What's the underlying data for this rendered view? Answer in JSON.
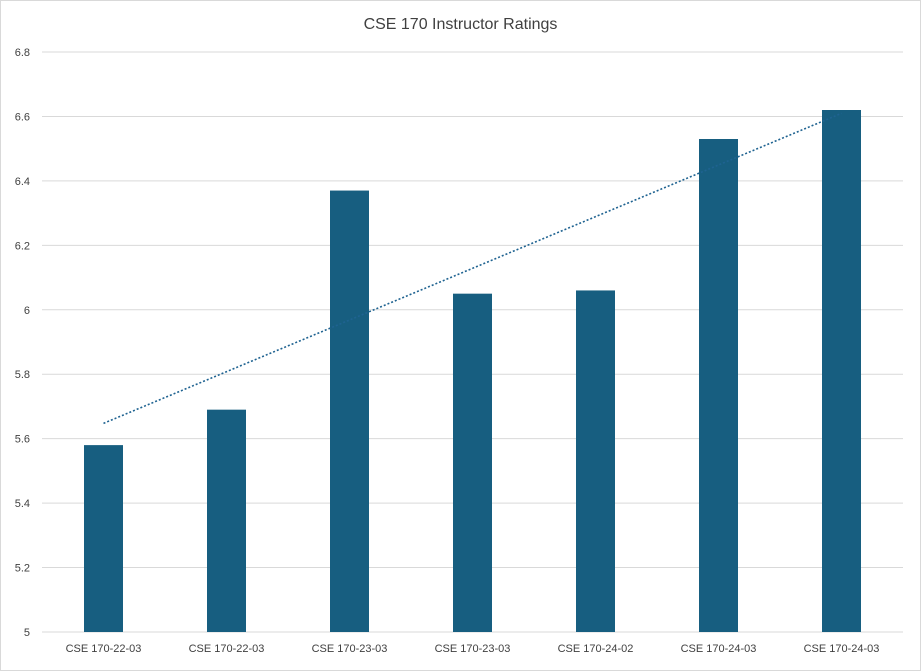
{
  "chart_data": {
    "type": "bar",
    "title": "CSE 170 Instructor Ratings",
    "xlabel": "",
    "ylabel": "",
    "categories": [
      "CSE 170-22-03",
      "CSE 170-22-03",
      "CSE 170-23-03",
      "CSE 170-23-03",
      "CSE 170-24-02",
      "CSE 170-24-03",
      "CSE 170-24-03"
    ],
    "values": [
      5.58,
      5.69,
      6.37,
      6.05,
      6.06,
      6.53,
      6.62
    ],
    "ylim": [
      5,
      6.8
    ],
    "yticks": [
      "5",
      "5.2",
      "5.4",
      "5.6",
      "5.8",
      "6",
      "6.2",
      "6.4",
      "6.6",
      "6.8"
    ],
    "grid": true,
    "legend": "none",
    "trendline": {
      "type": "linear",
      "style": "dotted",
      "color": "#1f6391"
    },
    "bar_color": "#175e80",
    "grid_color": "#d9d9d9"
  }
}
